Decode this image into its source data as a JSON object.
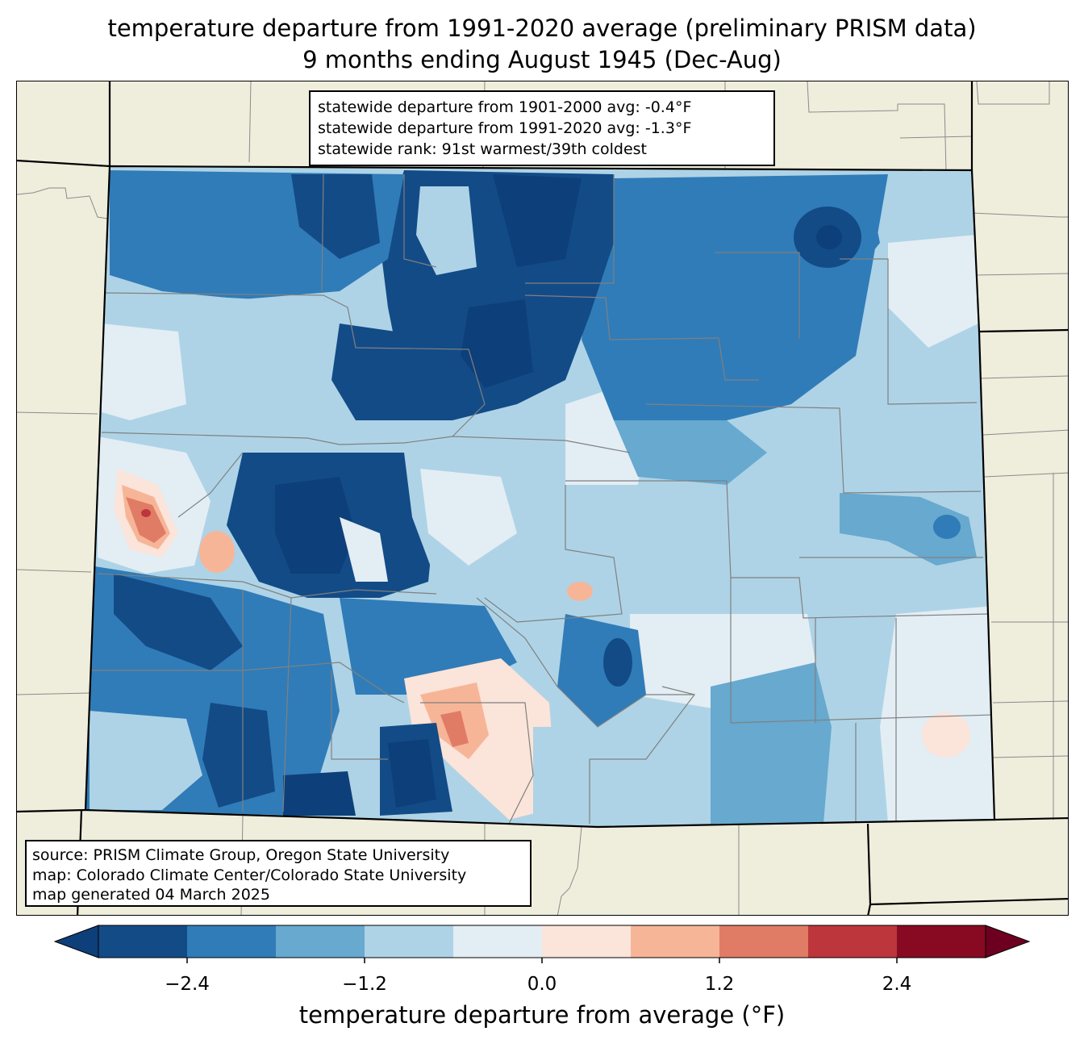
{
  "title": {
    "line1": "temperature departure from 1991-2020 average (preliminary PRISM data)",
    "line2": "9 months ending August 1945 (Dec-Aug)"
  },
  "stats": {
    "line1": "statewide departure from 1901-2000 avg: -0.4°F",
    "line2": "statewide departure from 1991-2020 avg: -1.3°F",
    "line3": "statewide rank: 91st warmest/39th coldest"
  },
  "source": {
    "line1": "source: PRISM Climate Group, Oregon State University",
    "line2": "map: Colorado Climate Center/Colorado State University",
    "line3": "map generated 04 March 2025"
  },
  "colorbar": {
    "label": "temperature departure from average (°F)",
    "ticks": [
      "−2.4",
      "−1.2",
      "0.0",
      "1.2",
      "2.4"
    ],
    "tick_values": [
      -2.4,
      -1.2,
      0.0,
      1.2,
      2.4
    ],
    "levels": [
      -3.0,
      -2.4,
      -1.8,
      -1.2,
      -0.6,
      0.0,
      0.6,
      1.2,
      1.8,
      2.4,
      3.0
    ],
    "colors": [
      "#0d3f7a",
      "#134b87",
      "#307cb8",
      "#67a9cf",
      "#aed3e6",
      "#e3edf4",
      "#fbe4d9",
      "#f7b598",
      "#e07c65",
      "#bd363b",
      "#880a22",
      "#6d0020"
    ]
  },
  "map_colors": {
    "land": "#efeedd",
    "county_lines": "#808080",
    "state_lines": "#000000"
  }
}
